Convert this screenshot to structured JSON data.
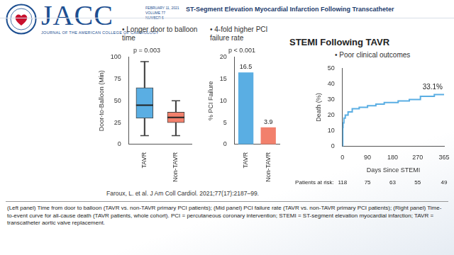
{
  "journal": {
    "name": "JACC",
    "subtitle": "JOURNAL OF THE AMERICAN COLLEGE OF CARDIOLOGY",
    "issue": [
      "FEBRUARY 11, 2021",
      "VOLUME 77",
      "NUMBER 5"
    ]
  },
  "figure": {
    "title": "ST-Segment Elevation Myocardial Infarction Following Transcatheter",
    "heading": "STEMI Following TAVR",
    "citation": "Faroux, L. et al. J Am Coll Cardiol. 2021;77(17):2187–99.",
    "caption": "(Left panel) Time from door to balloon (TAVR vs. non-TAVR primary PCI patients); (Mid panel) PCI failure rate (TAVR vs. non-TAVR primary PCI patients); (Right panel) Time-to-event curve for all-cause death (TAVR patients, whole cohort). PCI = percutaneous coronary intervention; STEMI = ST-segment elevation myocardial infarction; TAVR = transcatheter aortic valve replacement."
  },
  "chart_data": [
    {
      "type": "boxplot",
      "subtitle": "• Longer door to balloon time",
      "title": "p = 0.003",
      "y_label": "Door-to-Balloon (Min)",
      "categories": [
        "TAVR",
        "Non-TAVR"
      ],
      "colors": [
        "#5aaee3",
        "#f2806c"
      ],
      "boxes": [
        {
          "min": 10,
          "q1": 30,
          "median": 45,
          "q3": 65,
          "max": 95
        },
        {
          "min": 10,
          "q1": 25,
          "median": 31,
          "q3": 37,
          "max": 50
        }
      ],
      "ylim": [
        0,
        100
      ],
      "yticks": [
        0,
        25,
        50,
        75,
        100
      ],
      "grid": false
    },
    {
      "type": "bar",
      "subtitle": "• 4-fold higher PCI failure rate",
      "title": "p < 0.001",
      "y_label": "% PCI Failure",
      "categories": [
        "TAVR",
        "Non-TAVR"
      ],
      "values": [
        16.5,
        3.9
      ],
      "colors": [
        "#5aaee3",
        "#f2806c"
      ],
      "ylim": [
        0,
        20
      ],
      "yticks": [
        0,
        5,
        10,
        15,
        20
      ],
      "data_labels": true,
      "grid": false
    },
    {
      "type": "line",
      "subtitle": "• Poor clinical outcomes",
      "x_label": "Days Since STEMI",
      "y_label": "Death (%)",
      "x": [
        0,
        1,
        2,
        5,
        10,
        20,
        35,
        60,
        90,
        120,
        150,
        200,
        240,
        280,
        330,
        365
      ],
      "values": [
        0,
        12,
        15,
        18,
        20,
        22,
        24,
        25,
        26,
        27,
        28,
        29,
        30,
        32,
        33.1,
        33.1
      ],
      "color": "#5aaee3",
      "line_style": "step",
      "marker": "none",
      "annotation": "33.1%",
      "xlim": [
        0,
        365
      ],
      "xticks": [
        0,
        90,
        180,
        270,
        365
      ],
      "ylim": [
        0,
        50
      ],
      "yticks": [
        0,
        10,
        20,
        30,
        40,
        50
      ],
      "grid": false,
      "at_risk": {
        "label": "Patients at risk:",
        "x": [
          0,
          90,
          180,
          270,
          365
        ],
        "values": [
          118,
          75,
          63,
          55,
          49
        ]
      }
    }
  ]
}
